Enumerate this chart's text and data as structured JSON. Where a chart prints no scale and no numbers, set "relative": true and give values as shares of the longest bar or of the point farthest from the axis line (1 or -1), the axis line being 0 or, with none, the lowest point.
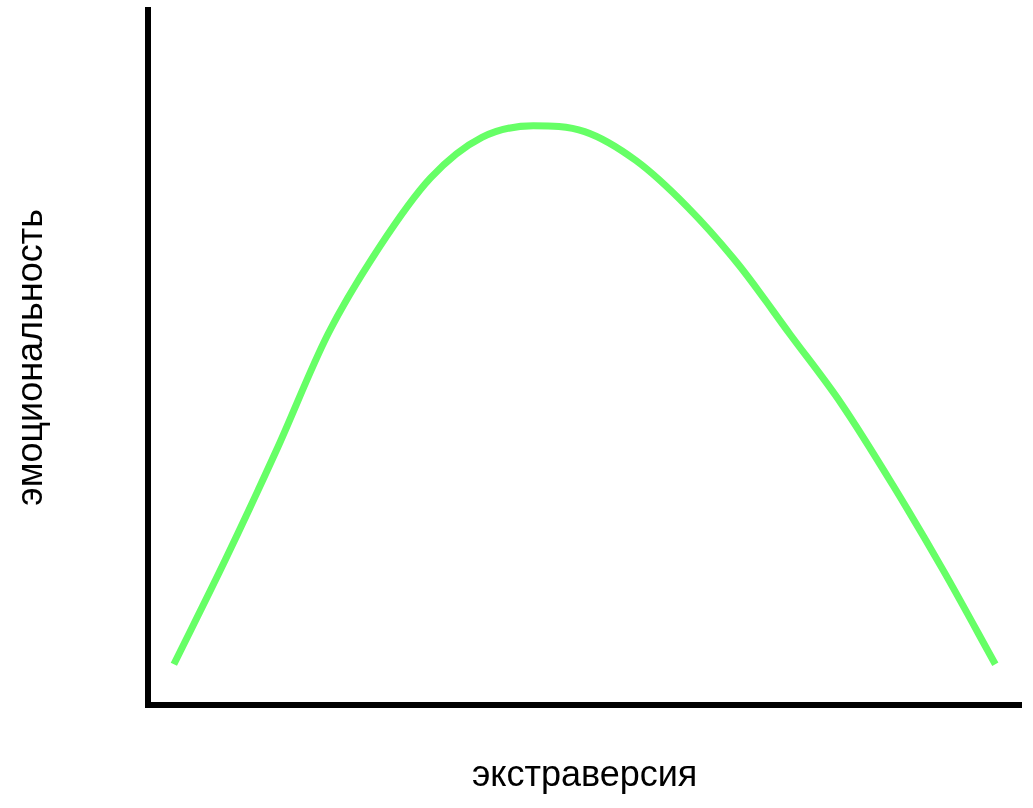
{
  "chart_data": {
    "type": "line",
    "relative": true,
    "xlabel": "экстраверсия",
    "ylabel": "эмоциональность",
    "grid": false,
    "categories": [
      null,
      null,
      null,
      null,
      null,
      null,
      null,
      null,
      null,
      null,
      null,
      null,
      null,
      null,
      null,
      null,
      null
    ],
    "series": [
      {
        "color": "#66ff66",
        "values": [
          0.07,
          0.25,
          0.44,
          0.64,
          0.79,
          0.91,
          0.98,
          1.0,
          0.99,
          0.94,
          0.86,
          0.76,
          0.64,
          0.52,
          0.38,
          0.23,
          0.07
        ]
      }
    ]
  }
}
